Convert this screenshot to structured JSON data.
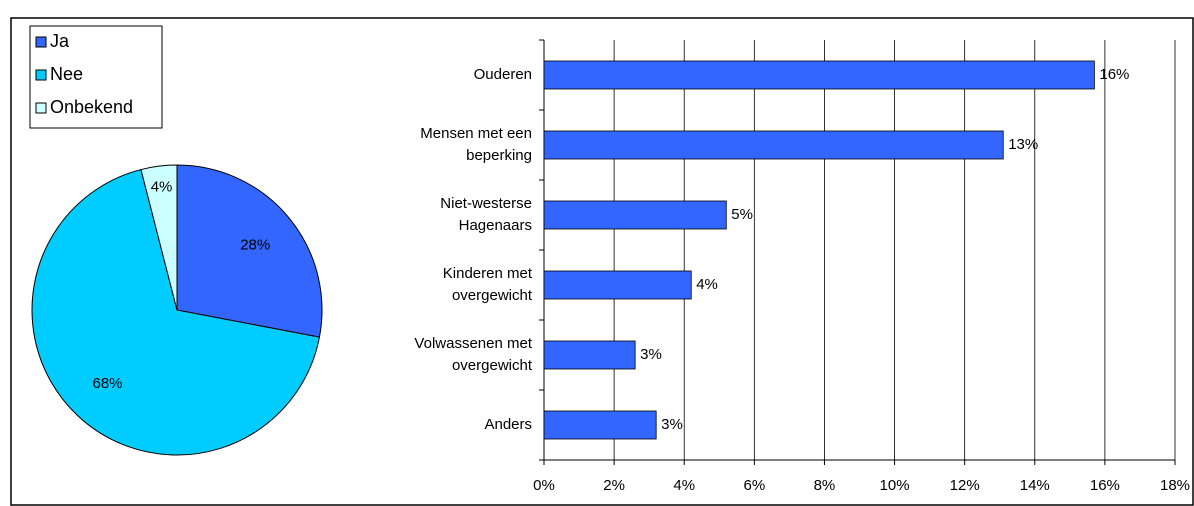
{
  "chart_data": [
    {
      "type": "pie",
      "categories": [
        "Ja",
        "Nee",
        "Onbekend"
      ],
      "values": [
        28,
        68,
        4
      ],
      "value_labels": [
        "28%",
        "68%",
        "4%"
      ],
      "colors": [
        "#3366ff",
        "#00ccff",
        "#ccffff"
      ],
      "legend": "top-left"
    },
    {
      "type": "hbar",
      "categories": [
        "Ouderen",
        "Mensen met een\nbeperking",
        "Niet-westerse\nHagenaars",
        "Kinderen met\novergewicht",
        "Volwassenen met\novergewicht",
        "Anders"
      ],
      "values": [
        15.7,
        13.1,
        5.2,
        4.2,
        2.6,
        3.2
      ],
      "value_labels": [
        "16%",
        "13%",
        "5%",
        "4%",
        "3%",
        "3%"
      ],
      "color": "#3366ff",
      "xlim": [
        0,
        18
      ],
      "xticks": [
        {
          "value": 0,
          "label": "0%"
        },
        {
          "value": 2,
          "label": "2%"
        },
        {
          "value": 4,
          "label": "4%"
        },
        {
          "value": 6,
          "label": "6%"
        },
        {
          "value": 8,
          "label": "8%"
        },
        {
          "value": 10,
          "label": "10%"
        },
        {
          "value": 12,
          "label": "12%"
        },
        {
          "value": 14,
          "label": "14%"
        },
        {
          "value": 16,
          "label": "16%"
        },
        {
          "value": 18,
          "label": "18%"
        }
      ],
      "grid": true
    }
  ]
}
